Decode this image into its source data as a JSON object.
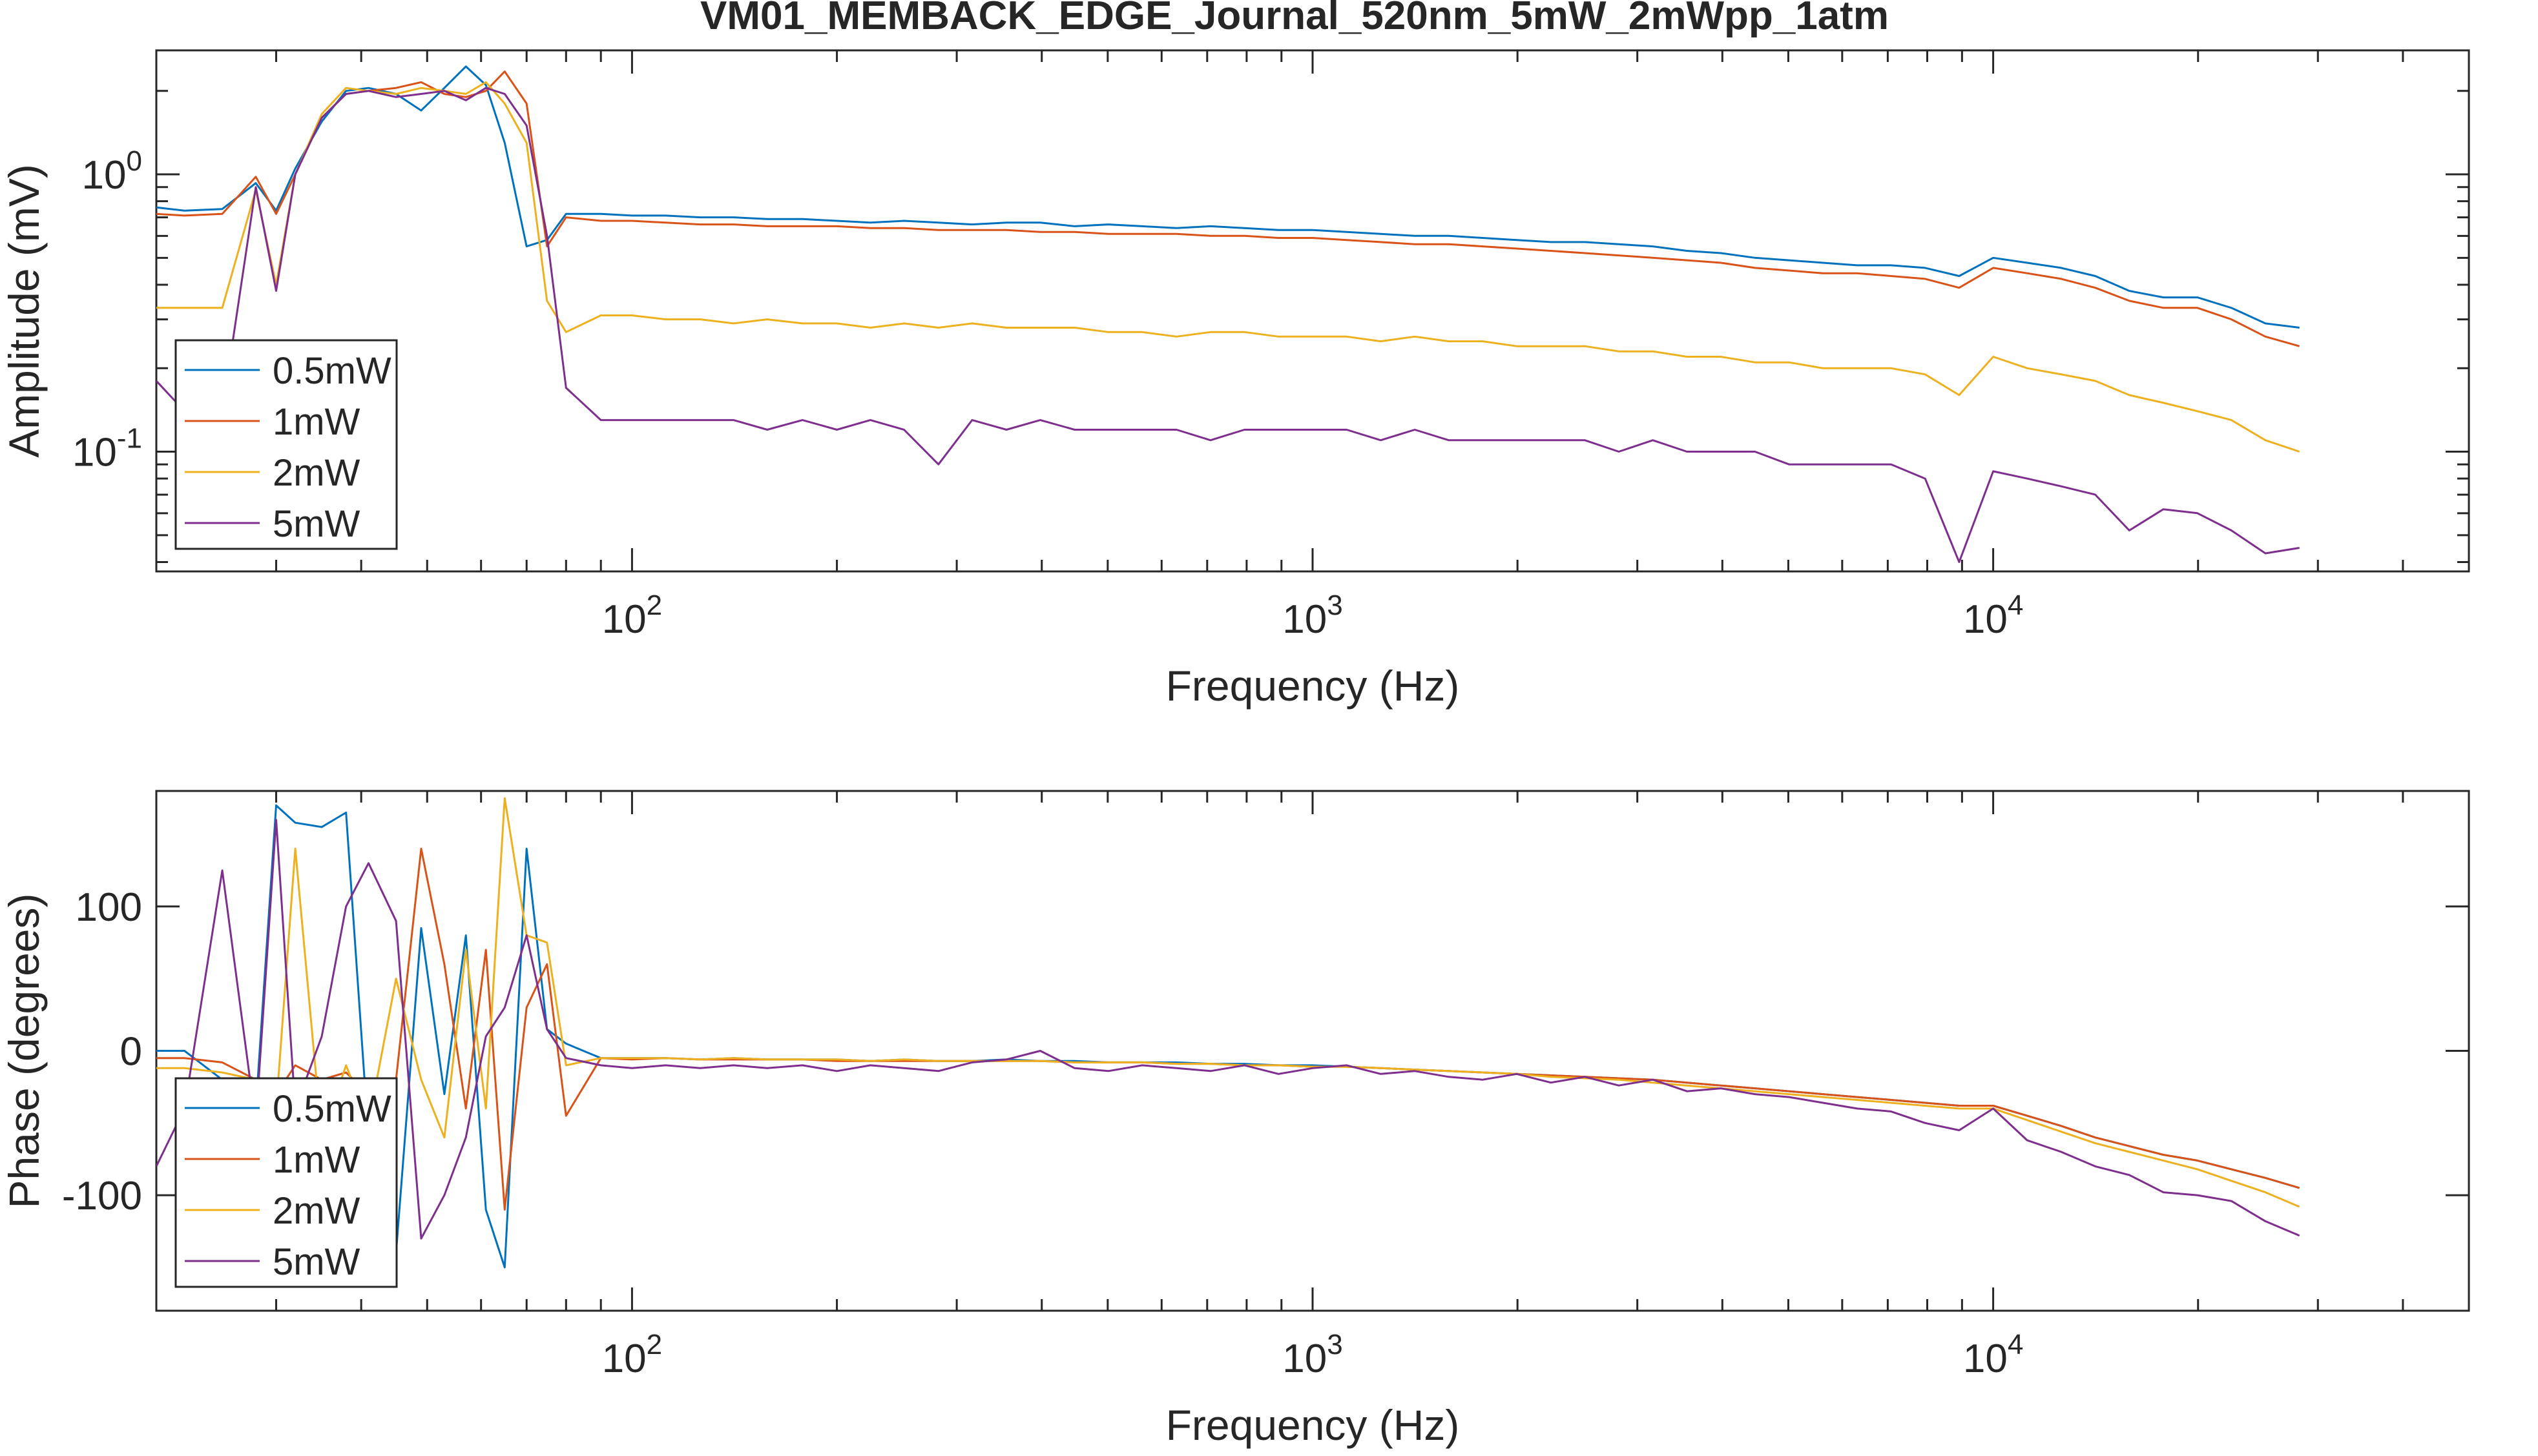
{
  "figure_title": "VM01_MEMBACK_EDGE_Journal_520nm_5mW_2mWpp_1atm",
  "colors": {
    "0.5mW": "#0072BD",
    "1mW": "#D95319",
    "2mW": "#EDB120",
    "5mW": "#7E2F8E"
  },
  "chart_data": [
    {
      "type": "line",
      "title": "VM01_MEMBACK_EDGE_Journal_520nm_5mW_2mWpp_1atm",
      "xlabel": "Frequency (Hz)",
      "ylabel": "Amplitude (mV)",
      "xscale": "log",
      "yscale": "log",
      "xlim": [
        20,
        50000
      ],
      "ylim": [
        0.037,
        2.8
      ],
      "xticks": [
        100,
        1000,
        10000
      ],
      "xtick_labels": [
        {
          "base": "10",
          "exp": "2"
        },
        {
          "base": "10",
          "exp": "3"
        },
        {
          "base": "10",
          "exp": "4"
        }
      ],
      "yticks": [
        1,
        0.1
      ],
      "ytick_labels": [
        {
          "base": "10",
          "exp": "0"
        },
        {
          "base": "10",
          "exp": "-1"
        }
      ],
      "grid": false,
      "legend": "bottom-left",
      "x": [
        20,
        22,
        25,
        28,
        30,
        32,
        35,
        38,
        41,
        45,
        49,
        53,
        57,
        61,
        65,
        70,
        75,
        80,
        90,
        100,
        112,
        126,
        141,
        158,
        178,
        200,
        224,
        251,
        282,
        316,
        355,
        398,
        447,
        501,
        562,
        631,
        708,
        794,
        891,
        1000,
        1122,
        1259,
        1413,
        1585,
        1778,
        1995,
        2239,
        2512,
        2818,
        3162,
        3548,
        3981,
        4467,
        5012,
        5623,
        6310,
        7079,
        7943,
        8913,
        10000,
        11220,
        12589,
        14125,
        15849,
        17783,
        19953,
        22387,
        25119,
        28184
      ],
      "series": [
        {
          "name": "0.5mW",
          "values": [
            0.76,
            0.74,
            0.75,
            0.93,
            0.74,
            1.05,
            1.55,
            2.0,
            2.05,
            1.95,
            1.7,
            2.05,
            2.45,
            2.1,
            1.3,
            0.55,
            0.58,
            0.72,
            0.72,
            0.71,
            0.71,
            0.7,
            0.7,
            0.69,
            0.69,
            0.68,
            0.67,
            0.68,
            0.67,
            0.66,
            0.67,
            0.67,
            0.65,
            0.66,
            0.65,
            0.64,
            0.65,
            0.64,
            0.63,
            0.63,
            0.62,
            0.61,
            0.6,
            0.6,
            0.59,
            0.58,
            0.57,
            0.57,
            0.56,
            0.55,
            0.53,
            0.52,
            0.5,
            0.49,
            0.48,
            0.47,
            0.47,
            0.46,
            0.43,
            0.5,
            0.48,
            0.46,
            0.43,
            0.38,
            0.36,
            0.36,
            0.33,
            0.29,
            0.28
          ]
        },
        {
          "name": "1mW",
          "values": [
            0.72,
            0.71,
            0.72,
            0.98,
            0.72,
            1.0,
            1.6,
            1.95,
            2.0,
            2.05,
            2.15,
            1.95,
            1.9,
            2.0,
            2.35,
            1.8,
            0.55,
            0.7,
            0.68,
            0.68,
            0.67,
            0.66,
            0.66,
            0.65,
            0.65,
            0.65,
            0.64,
            0.64,
            0.63,
            0.63,
            0.63,
            0.62,
            0.62,
            0.61,
            0.61,
            0.61,
            0.6,
            0.6,
            0.59,
            0.59,
            0.58,
            0.57,
            0.56,
            0.56,
            0.55,
            0.54,
            0.53,
            0.52,
            0.51,
            0.5,
            0.49,
            0.48,
            0.46,
            0.45,
            0.44,
            0.44,
            0.43,
            0.42,
            0.39,
            0.46,
            0.44,
            0.42,
            0.39,
            0.35,
            0.33,
            0.33,
            0.3,
            0.26,
            0.24
          ]
        },
        {
          "name": "2mW",
          "values": [
            0.33,
            0.33,
            0.33,
            0.88,
            0.4,
            1.0,
            1.65,
            2.05,
            2.0,
            1.95,
            2.05,
            2.0,
            1.95,
            2.15,
            1.8,
            1.3,
            0.35,
            0.27,
            0.31,
            0.31,
            0.3,
            0.3,
            0.29,
            0.3,
            0.29,
            0.29,
            0.28,
            0.29,
            0.28,
            0.29,
            0.28,
            0.28,
            0.28,
            0.27,
            0.27,
            0.26,
            0.27,
            0.27,
            0.26,
            0.26,
            0.26,
            0.25,
            0.26,
            0.25,
            0.25,
            0.24,
            0.24,
            0.24,
            0.23,
            0.23,
            0.22,
            0.22,
            0.21,
            0.21,
            0.2,
            0.2,
            0.2,
            0.19,
            0.16,
            0.22,
            0.2,
            0.19,
            0.18,
            0.16,
            0.15,
            0.14,
            0.13,
            0.11,
            0.1
          ]
        },
        {
          "name": "5mW",
          "values": [
            0.18,
            0.14,
            0.14,
            0.9,
            0.38,
            1.0,
            1.6,
            1.95,
            2.0,
            1.9,
            1.95,
            2.0,
            1.85,
            2.05,
            1.95,
            1.5,
            0.6,
            0.17,
            0.13,
            0.13,
            0.13,
            0.13,
            0.13,
            0.12,
            0.13,
            0.12,
            0.13,
            0.12,
            0.09,
            0.13,
            0.12,
            0.13,
            0.12,
            0.12,
            0.12,
            0.12,
            0.11,
            0.12,
            0.12,
            0.12,
            0.12,
            0.11,
            0.12,
            0.11,
            0.11,
            0.11,
            0.11,
            0.11,
            0.1,
            0.11,
            0.1,
            0.1,
            0.1,
            0.09,
            0.09,
            0.09,
            0.09,
            0.08,
            0.04,
            0.085,
            0.08,
            0.075,
            0.07,
            0.052,
            0.062,
            0.06,
            0.052,
            0.043,
            0.045
          ]
        }
      ]
    },
    {
      "type": "line",
      "xlabel": "Frequency (Hz)",
      "ylabel": "Phase (degrees)",
      "xscale": "log",
      "xlim": [
        20,
        50000
      ],
      "ylim": [
        -180,
        180
      ],
      "xticks": [
        100,
        1000,
        10000
      ],
      "xtick_labels": [
        {
          "base": "10",
          "exp": "2"
        },
        {
          "base": "10",
          "exp": "3"
        },
        {
          "base": "10",
          "exp": "4"
        }
      ],
      "yticks": [
        100,
        0,
        -100
      ],
      "ytick_labels": [
        "100",
        "0",
        "-100"
      ],
      "grid": false,
      "legend": "bottom-left",
      "x": [
        20,
        22,
        25,
        28,
        30,
        32,
        35,
        38,
        41,
        45,
        49,
        53,
        57,
        61,
        65,
        70,
        75,
        80,
        90,
        100,
        112,
        126,
        141,
        158,
        178,
        200,
        224,
        251,
        282,
        316,
        355,
        398,
        447,
        501,
        562,
        631,
        708,
        794,
        891,
        1000,
        1122,
        1259,
        1413,
        1585,
        1778,
        1995,
        2239,
        2512,
        2818,
        3162,
        3548,
        3981,
        4467,
        5012,
        5623,
        6310,
        7079,
        7943,
        8913,
        10000,
        11220,
        12589,
        14125,
        15849,
        17783,
        19953,
        22387,
        25119,
        28184
      ],
      "series": [
        {
          "name": "0.5mW",
          "values": [
            0,
            0,
            -20,
            -40,
            170,
            158,
            155,
            165,
            -60,
            -140,
            85,
            -30,
            80,
            -110,
            -150,
            140,
            15,
            5,
            -5,
            -5,
            -5,
            -6,
            -5,
            -6,
            -6,
            -6,
            -7,
            -6,
            -7,
            -7,
            -6,
            -7,
            -7,
            -8,
            -8,
            -8,
            -9,
            -9,
            -10,
            -10,
            -11,
            -12,
            -13,
            -14,
            -15,
            -16,
            -17,
            -18,
            -19,
            -20,
            -22,
            -24,
            -26,
            -28,
            -30,
            -32,
            -34,
            -36,
            -38,
            -38,
            -45,
            -52,
            -60,
            -66,
            -72,
            -76,
            -82,
            -88,
            -95
          ]
        },
        {
          "name": "1mW",
          "values": [
            -5,
            -5,
            -8,
            -20,
            -30,
            -10,
            -20,
            -15,
            -30,
            -20,
            140,
            60,
            -40,
            70,
            -110,
            30,
            60,
            -45,
            -5,
            -6,
            -5,
            -6,
            -6,
            -6,
            -6,
            -7,
            -7,
            -7,
            -7,
            -7,
            -7,
            -7,
            -8,
            -8,
            -8,
            -9,
            -9,
            -10,
            -10,
            -11,
            -11,
            -12,
            -13,
            -14,
            -15,
            -16,
            -17,
            -18,
            -19,
            -20,
            -22,
            -24,
            -26,
            -28,
            -30,
            -32,
            -34,
            -36,
            -38,
            -38,
            -45,
            -52,
            -60,
            -66,
            -72,
            -76,
            -82,
            -88,
            -95
          ]
        },
        {
          "name": "2mW",
          "values": [
            -12,
            -12,
            -15,
            -20,
            -40,
            140,
            -60,
            -10,
            -50,
            50,
            -20,
            -60,
            70,
            -40,
            175,
            80,
            75,
            -10,
            -5,
            -5,
            -5,
            -6,
            -5,
            -6,
            -6,
            -6,
            -7,
            -6,
            -7,
            -7,
            -7,
            -7,
            -8,
            -8,
            -8,
            -9,
            -9,
            -10,
            -10,
            -11,
            -11,
            -12,
            -13,
            -14,
            -15,
            -16,
            -18,
            -19,
            -20,
            -22,
            -24,
            -26,
            -28,
            -30,
            -32,
            -34,
            -36,
            -38,
            -40,
            -40,
            -48,
            -56,
            -64,
            -70,
            -76,
            -82,
            -90,
            -98,
            -108
          ]
        },
        {
          "name": "5mW",
          "values": [
            -80,
            -40,
            125,
            -50,
            160,
            -40,
            10,
            100,
            130,
            90,
            -130,
            -100,
            -60,
            10,
            30,
            80,
            15,
            -5,
            -10,
            -12,
            -10,
            -12,
            -10,
            -12,
            -10,
            -14,
            -10,
            -12,
            -14,
            -8,
            -6,
            0,
            -12,
            -14,
            -10,
            -12,
            -14,
            -10,
            -16,
            -12,
            -10,
            -16,
            -14,
            -18,
            -20,
            -16,
            -22,
            -18,
            -24,
            -20,
            -28,
            -26,
            -30,
            -32,
            -36,
            -40,
            -42,
            -50,
            -55,
            -40,
            -62,
            -70,
            -80,
            -86,
            -98,
            -100,
            -104,
            -118,
            -128
          ]
        }
      ]
    }
  ]
}
